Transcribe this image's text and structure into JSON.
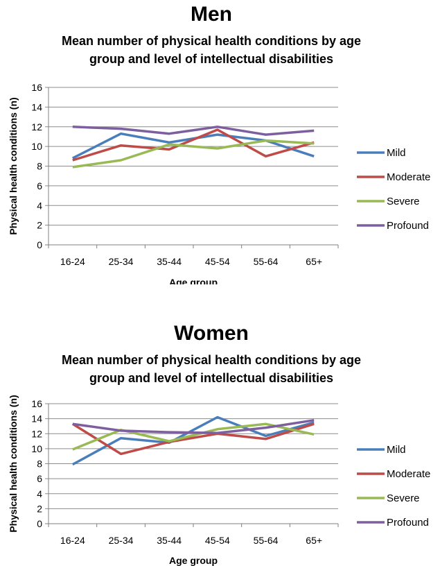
{
  "chart_data": [
    {
      "type": "line",
      "title": "Men",
      "subtitle": "Mean number of physical health conditions by age group and level of intellectual disabilities",
      "subtitle_lines": [
        "Mean number of physical health conditions by age",
        "group and level of intellectual disabilities"
      ],
      "xlabel": "Age group",
      "ylabel": "Physical health conditions (n)",
      "ylim": [
        0,
        16
      ],
      "yticks": [
        "0",
        "2",
        "4",
        "6",
        "8",
        "10",
        "12",
        "14",
        "16"
      ],
      "grid": true,
      "legend": "right",
      "categories": [
        "16-24",
        "25-34",
        "35-44",
        "45-54",
        "55-64",
        "65+"
      ],
      "series": [
        {
          "name": "Mild",
          "color": "#4a7ebb",
          "values": [
            8.8,
            11.3,
            10.4,
            11.2,
            10.6,
            9.0
          ]
        },
        {
          "name": "Moderate",
          "color": "#be4b48",
          "values": [
            8.6,
            10.1,
            9.7,
            11.7,
            9.0,
            10.4
          ]
        },
        {
          "name": "Severe",
          "color": "#98b954",
          "values": [
            7.9,
            8.6,
            10.2,
            9.8,
            10.6,
            10.3
          ]
        },
        {
          "name": "Profound",
          "color": "#7d5fa0",
          "values": [
            12.0,
            11.8,
            11.3,
            12.0,
            11.2,
            11.6
          ]
        }
      ]
    },
    {
      "type": "line",
      "title": "Women",
      "subtitle": "Mean number of physical health conditions by age group and level of intellectual disabilities",
      "subtitle_lines": [
        "Mean number of physical health conditions by age",
        "group and level of intellectual disabilities"
      ],
      "xlabel": "Age group",
      "ylabel": "Physical health conditions (n)",
      "ylim": [
        0,
        16
      ],
      "yticks": [
        "0",
        "2",
        "4",
        "6",
        "8",
        "10",
        "12",
        "14",
        "16"
      ],
      "grid": true,
      "legend": "right",
      "categories": [
        "16-24",
        "25-34",
        "35-44",
        "45-54",
        "55-64",
        "65+"
      ],
      "series": [
        {
          "name": "Mild",
          "color": "#4a7ebb",
          "values": [
            7.9,
            11.4,
            10.8,
            14.2,
            11.7,
            13.5
          ]
        },
        {
          "name": "Moderate",
          "color": "#be4b48",
          "values": [
            13.3,
            9.3,
            10.9,
            12.0,
            11.3,
            13.3
          ]
        },
        {
          "name": "Severe",
          "color": "#98b954",
          "values": [
            9.9,
            12.5,
            11.0,
            12.6,
            13.3,
            11.9
          ]
        },
        {
          "name": "Profound",
          "color": "#7d5fa0",
          "values": [
            13.3,
            12.4,
            12.2,
            12.1,
            12.8,
            13.8
          ]
        }
      ]
    }
  ]
}
